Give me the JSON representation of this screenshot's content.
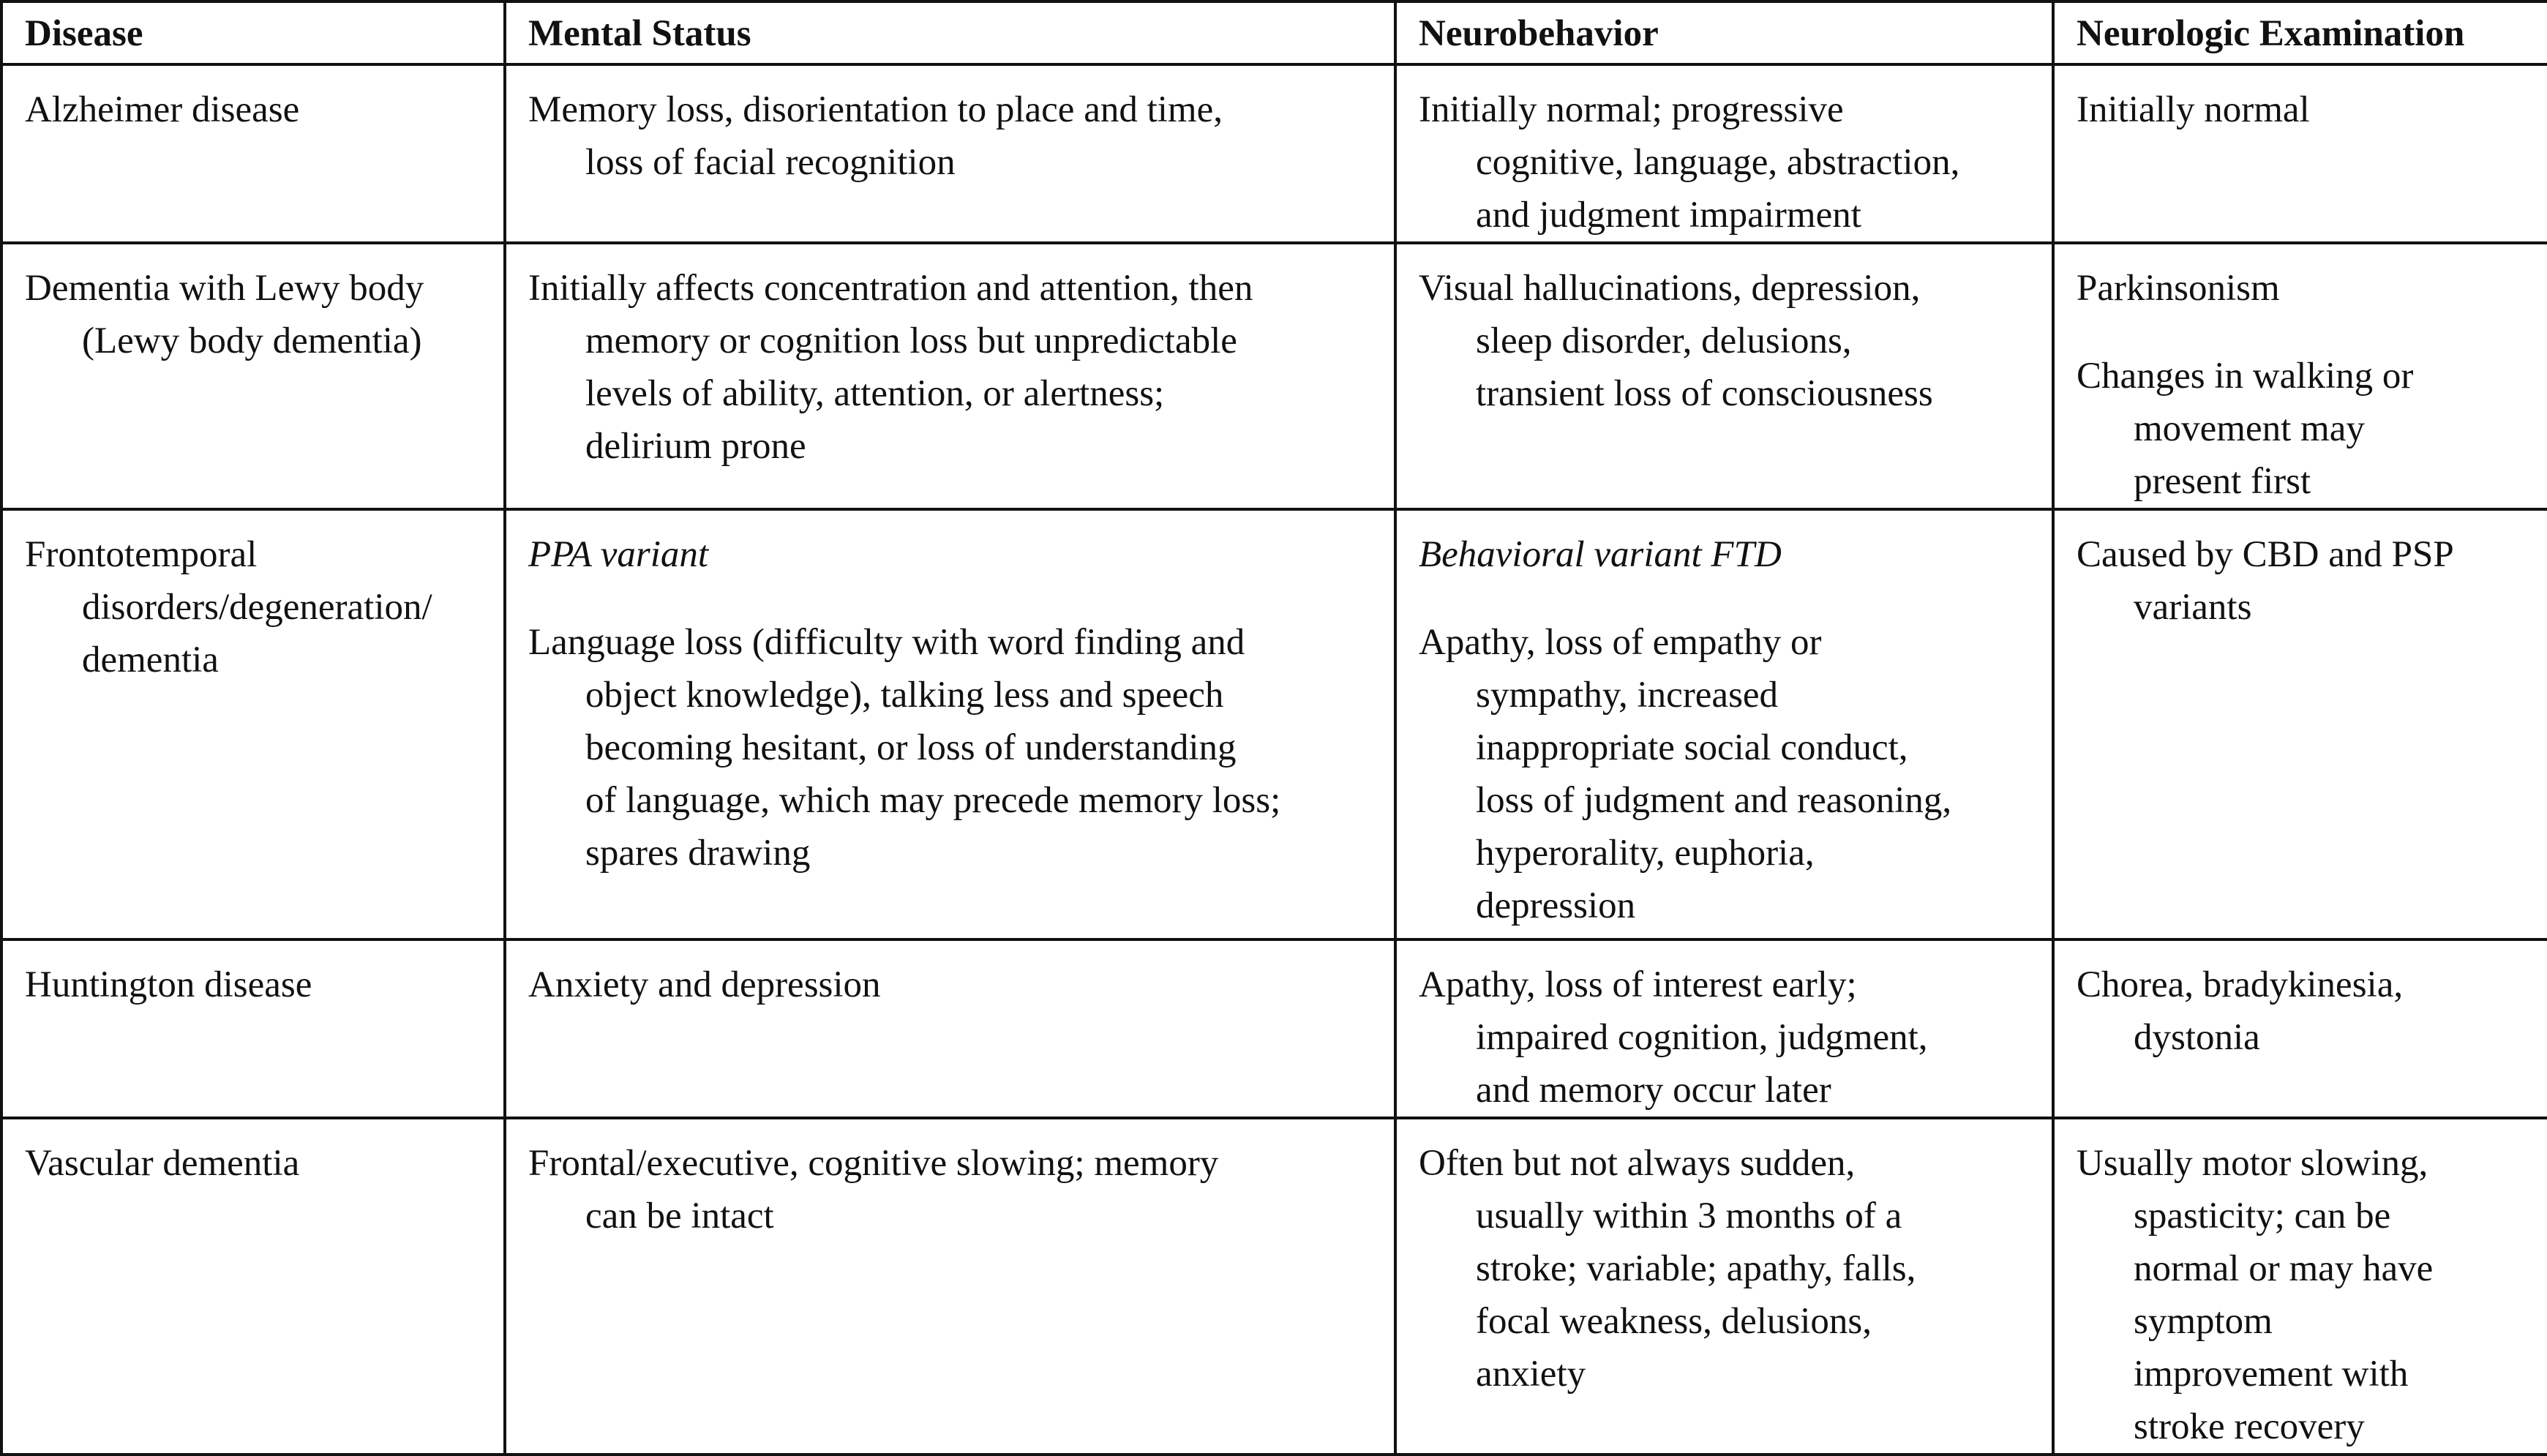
{
  "headers": [
    "Disease",
    "Mental Status",
    "Neurobehavior",
    "Neurologic Examination"
  ],
  "rows": [
    {
      "cells": [
        [
          {
            "lines": [
              "Alzheimer disease"
            ]
          }
        ],
        [
          {
            "lines": [
              "Memory loss, disorientation to place and time,",
              "loss of facial recognition"
            ]
          }
        ],
        [
          {
            "lines": [
              "Initially normal; progressive",
              "cognitive, language, abstraction,",
              "and judgment impairment"
            ]
          }
        ],
        [
          {
            "lines": [
              "Initially normal"
            ]
          }
        ]
      ]
    },
    {
      "cells": [
        [
          {
            "lines": [
              "Dementia with Lewy body",
              "(Lewy body dementia)"
            ]
          }
        ],
        [
          {
            "lines": [
              "Initially affects concentration and attention, then",
              "memory or cognition loss but unpredictable",
              "levels of ability, attention, or alertness;",
              "delirium prone"
            ]
          }
        ],
        [
          {
            "lines": [
              "Visual hallucinations, depression,",
              "sleep disorder, delusions,",
              "transient loss of consciousness"
            ]
          }
        ],
        [
          {
            "lines": [
              "Parkinsonism"
            ]
          },
          {
            "lines": [
              "Changes in walking or",
              "movement may",
              "present first"
            ]
          }
        ]
      ]
    },
    {
      "cells": [
        [
          {
            "lines": [
              "Frontotemporal",
              "disorders/degeneration/",
              "dementia"
            ]
          }
        ],
        [
          {
            "italic": true,
            "lines": [
              "PPA variant"
            ]
          },
          {
            "lines": [
              "Language loss (difficulty with word finding and",
              "object knowledge), talking less and speech",
              "becoming hesitant, or loss of understanding",
              "of language, which may precede memory loss;",
              "spares drawing"
            ]
          }
        ],
        [
          {
            "italic": true,
            "lines": [
              "Behavioral variant FTD"
            ]
          },
          {
            "lines": [
              "Apathy, loss of empathy or",
              "sympathy, increased",
              "inappropriate social conduct,",
              "loss of judgment and reasoning,",
              "hyperorality, euphoria,",
              "depression"
            ]
          }
        ],
        [
          {
            "lines": [
              "Caused by CBD and PSP",
              "variants"
            ]
          }
        ]
      ]
    },
    {
      "cells": [
        [
          {
            "lines": [
              "Huntington disease"
            ]
          }
        ],
        [
          {
            "lines": [
              "Anxiety and depression"
            ]
          }
        ],
        [
          {
            "lines": [
              "Apathy, loss of interest early;",
              "impaired cognition, judgment,",
              "and memory occur later"
            ]
          }
        ],
        [
          {
            "lines": [
              "Chorea, bradykinesia,",
              "dystonia"
            ]
          }
        ]
      ]
    },
    {
      "cells": [
        [
          {
            "lines": [
              "Vascular dementia"
            ]
          }
        ],
        [
          {
            "lines": [
              "Frontal/executive, cognitive slowing; memory",
              "can be intact"
            ]
          }
        ],
        [
          {
            "lines": [
              "Often but not always sudden,",
              "usually within 3 months of a",
              "stroke; variable; apathy, falls,",
              "focal weakness, delusions,",
              "anxiety"
            ]
          }
        ],
        [
          {
            "lines": [
              "Usually motor slowing,",
              "spasticity; can be",
              "normal or may have",
              "symptom",
              "improvement with",
              "stroke recovery"
            ]
          }
        ]
      ]
    }
  ]
}
